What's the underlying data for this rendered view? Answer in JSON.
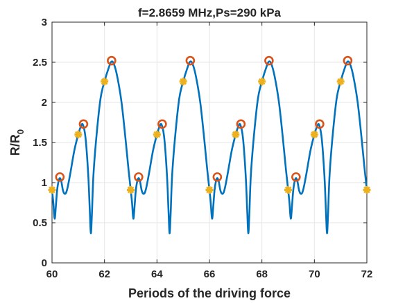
{
  "chart_data": {
    "type": "line",
    "title": "f=2.8659 MHz,Ps=290 kPa",
    "xlabel": "Periods of the driving force",
    "ylabel_main": "R/R",
    "ylabel_sub": "0",
    "xlim": [
      60,
      72
    ],
    "ylim": [
      0,
      3
    ],
    "x_ticks": [
      60,
      62,
      64,
      66,
      68,
      70,
      72
    ],
    "x_tick_labels": [
      "60",
      "62",
      "64",
      "66",
      "68",
      "70",
      "72"
    ],
    "y_ticks": [
      0,
      0.5,
      1,
      1.5,
      2,
      2.5,
      3
    ],
    "y_tick_labels": [
      "0",
      "0.5",
      "1",
      "1.5",
      "2",
      "2.5",
      "3"
    ],
    "grid": true,
    "period": 3,
    "line_color": "#0072BD",
    "circle_color": "#D95319",
    "star_color": "#EDB120",
    "cycle_shape": [
      [
        0.0,
        0.91
      ],
      [
        0.05,
        0.75
      ],
      [
        0.1,
        0.55
      ],
      [
        0.15,
        0.72
      ],
      [
        0.2,
        0.92
      ],
      [
        0.28,
        1.05
      ],
      [
        0.35,
        1.02
      ],
      [
        0.42,
        0.9
      ],
      [
        0.5,
        0.86
      ],
      [
        0.58,
        0.92
      ],
      [
        0.7,
        1.12
      ],
      [
        0.85,
        1.4
      ],
      [
        1.0,
        1.6
      ],
      [
        1.1,
        1.7
      ],
      [
        1.18,
        1.72
      ],
      [
        1.28,
        1.55
      ],
      [
        1.38,
        1.1
      ],
      [
        1.44,
        0.65
      ],
      [
        1.48,
        0.37
      ],
      [
        1.52,
        0.6
      ],
      [
        1.58,
        1.1
      ],
      [
        1.7,
        1.6
      ],
      [
        1.85,
        2.05
      ],
      [
        2.0,
        2.26
      ],
      [
        2.15,
        2.42
      ],
      [
        2.27,
        2.51
      ],
      [
        2.38,
        2.46
      ],
      [
        2.5,
        2.3
      ],
      [
        2.65,
        2.0
      ],
      [
        2.8,
        1.55
      ],
      [
        2.92,
        1.15
      ],
      [
        3.0,
        0.91
      ]
    ],
    "circle_markers": [
      {
        "x": 60.3,
        "y": 1.07
      },
      {
        "x": 61.2,
        "y": 1.73
      },
      {
        "x": 62.27,
        "y": 2.52
      },
      {
        "x": 63.3,
        "y": 1.07
      },
      {
        "x": 64.2,
        "y": 1.73
      },
      {
        "x": 65.27,
        "y": 2.52
      },
      {
        "x": 66.3,
        "y": 1.07
      },
      {
        "x": 67.2,
        "y": 1.73
      },
      {
        "x": 68.27,
        "y": 2.52
      },
      {
        "x": 69.3,
        "y": 1.07
      },
      {
        "x": 70.2,
        "y": 1.73
      },
      {
        "x": 71.27,
        "y": 2.52
      }
    ],
    "star_markers": [
      {
        "x": 60.0,
        "y": 0.91
      },
      {
        "x": 61.0,
        "y": 1.6
      },
      {
        "x": 62.0,
        "y": 2.26
      },
      {
        "x": 63.0,
        "y": 0.91
      },
      {
        "x": 64.0,
        "y": 1.6
      },
      {
        "x": 65.0,
        "y": 2.26
      },
      {
        "x": 66.0,
        "y": 0.91
      },
      {
        "x": 67.0,
        "y": 1.6
      },
      {
        "x": 68.0,
        "y": 2.26
      },
      {
        "x": 69.0,
        "y": 0.91
      },
      {
        "x": 70.0,
        "y": 1.6
      },
      {
        "x": 71.0,
        "y": 2.26
      },
      {
        "x": 72.0,
        "y": 0.91
      }
    ]
  }
}
